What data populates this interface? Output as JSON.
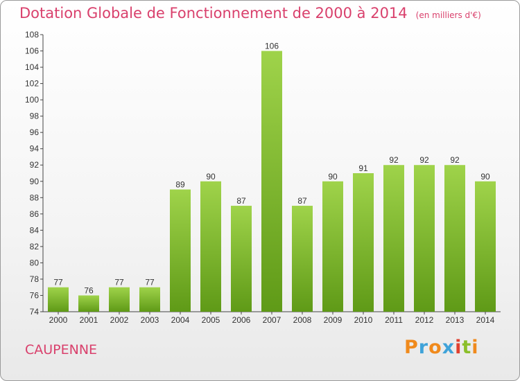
{
  "chart_data": {
    "type": "bar",
    "title": "Dotation Globale de Fonctionnement de 2000 à 2014",
    "unit": "(en milliers d'€)",
    "categories": [
      "2000",
      "2001",
      "2002",
      "2003",
      "2004",
      "2005",
      "2006",
      "2007",
      "2008",
      "2009",
      "2010",
      "2011",
      "2012",
      "2013",
      "2014"
    ],
    "values": [
      77,
      76,
      77,
      77,
      89,
      90,
      87,
      106,
      87,
      90,
      91,
      92,
      92,
      92,
      90
    ],
    "ylim": [
      74,
      108
    ],
    "yticks": [
      74,
      76,
      78,
      80,
      82,
      84,
      86,
      88,
      90,
      92,
      94,
      96,
      98,
      100,
      102,
      104,
      106,
      108
    ],
    "grid": false,
    "bar_color": "#7dbb2c",
    "bar_color_light": "#9fd34a",
    "bar_color_dark": "#5f9a17"
  },
  "footer": {
    "commune": "CAUPENNE",
    "logo": "Proxiti"
  },
  "colors": {
    "title": "#d9406c"
  }
}
